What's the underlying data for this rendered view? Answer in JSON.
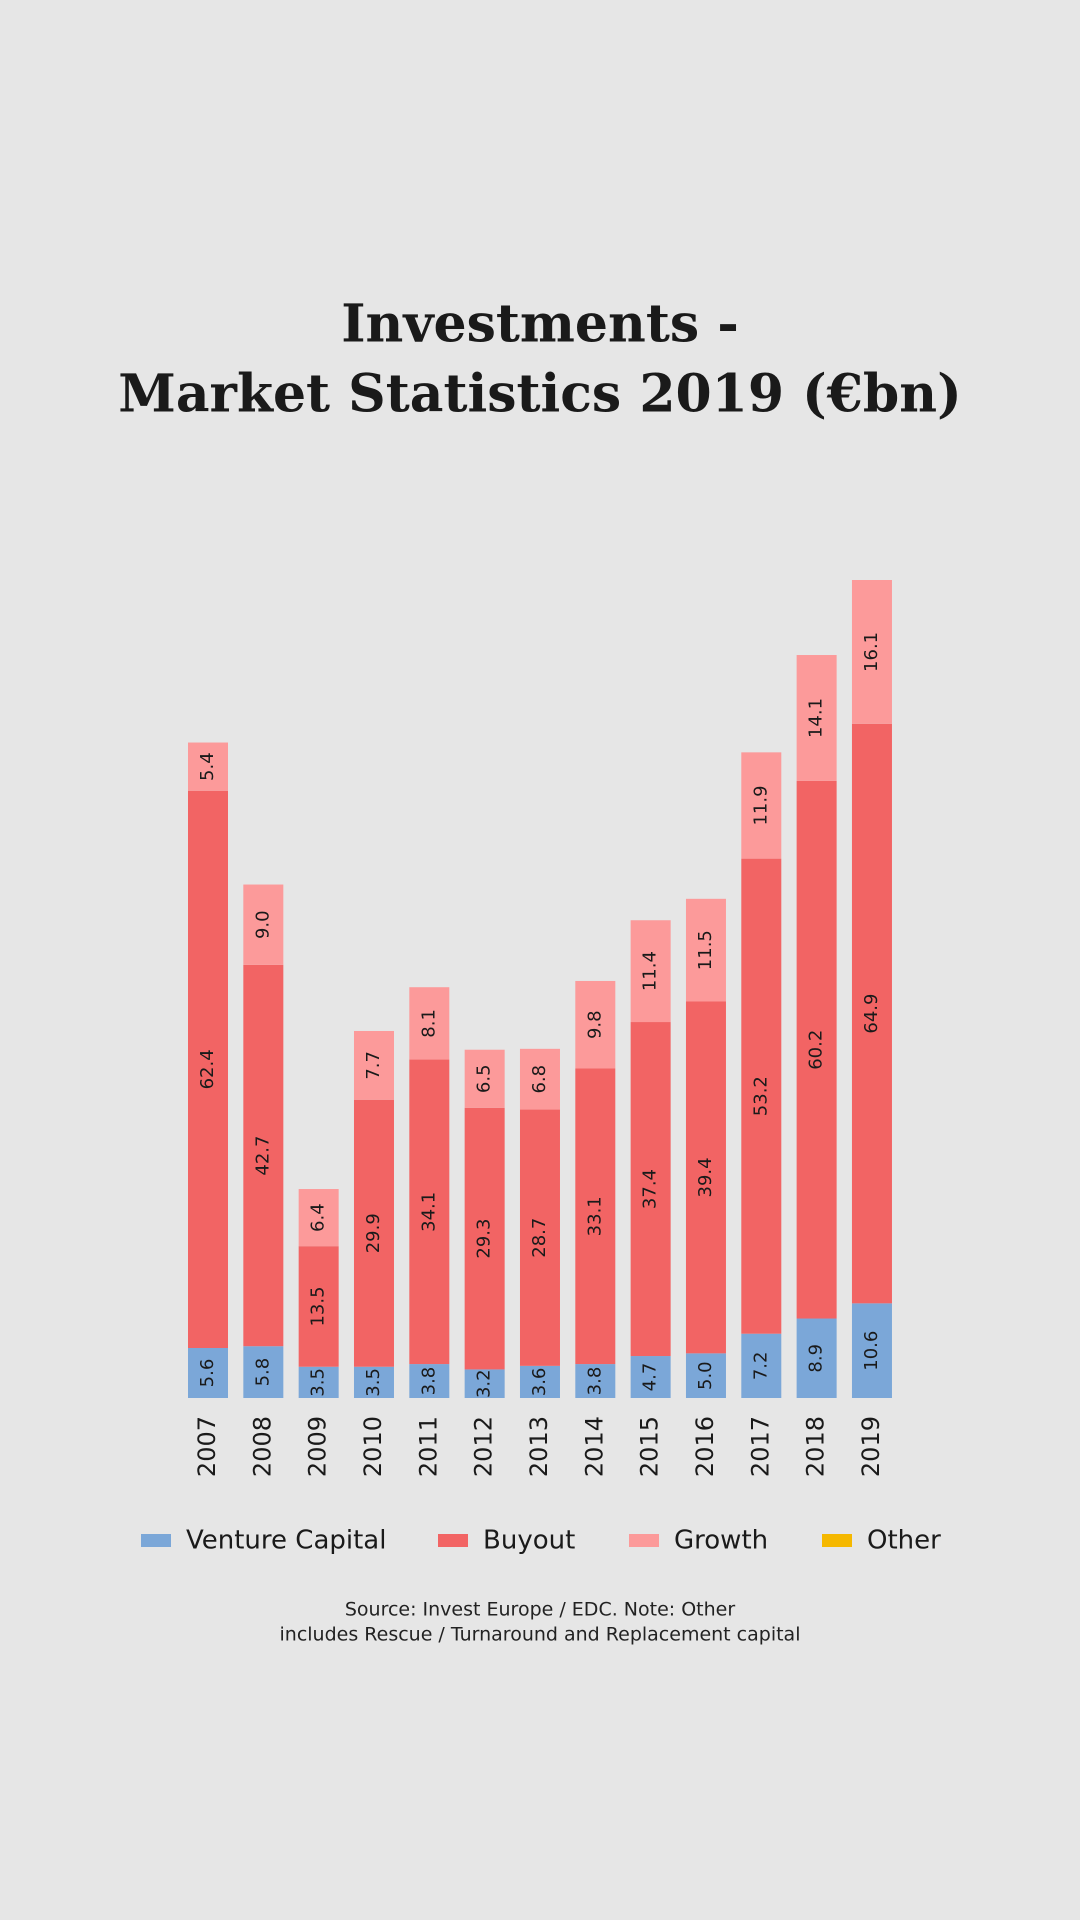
{
  "chart_data": {
    "type": "stacked-bar",
    "title": [
      "Investments -",
      "Market Statistics 2019 (€bn)"
    ],
    "categories": [
      "2007",
      "2008",
      "2009",
      "2010",
      "2011",
      "2012",
      "2013",
      "2014",
      "2015",
      "2016",
      "2017",
      "2018",
      "2019"
    ],
    "series": [
      {
        "name": "Venture Capital",
        "color": "#7ba7d8",
        "values": [
          5.6,
          5.8,
          3.5,
          3.5,
          3.8,
          3.2,
          3.6,
          3.8,
          4.7,
          5.0,
          7.2,
          8.9,
          10.6
        ],
        "value_labels": [
          "5.6",
          "5.8",
          "3.5",
          "3.5",
          "3.8",
          "3.2",
          "3.6",
          "3.8",
          "4.7",
          "5.0",
          "7.2",
          "8.9",
          "10.6"
        ]
      },
      {
        "name": "Buyout",
        "color": "#f26464",
        "values": [
          62.4,
          42.7,
          13.5,
          29.9,
          34.1,
          29.3,
          28.7,
          33.1,
          37.4,
          39.4,
          53.2,
          60.2,
          64.9
        ],
        "value_labels": [
          "62.4",
          "42.7",
          "13.5",
          "29.9",
          "34.1",
          "29.3",
          "28.7",
          "33.1",
          "37.4",
          "39.4",
          "53.2",
          "60.2",
          "64.9"
        ]
      },
      {
        "name": "Growth",
        "color": "#fc9a9a",
        "values": [
          5.4,
          9.0,
          6.4,
          7.7,
          8.1,
          6.5,
          6.8,
          9.8,
          11.4,
          11.5,
          11.9,
          14.1,
          16.1
        ],
        "value_labels": [
          "5.4",
          "9.0",
          "6.4",
          "7.7",
          "8.1",
          "6.5",
          "6.8",
          "9.8",
          "11.4",
          "11.5",
          "11.9",
          "14.1",
          "16.1"
        ]
      },
      {
        "name": "Other",
        "color": "#f5b800",
        "values": [
          null,
          null,
          null,
          null,
          null,
          null,
          null,
          null,
          null,
          null,
          null,
          null,
          null
        ]
      }
    ],
    "source": [
      "Source: Invest Europe / EDC. Note: Other",
      "includes Rescue / Turnaround and Replacement capital"
    ]
  }
}
